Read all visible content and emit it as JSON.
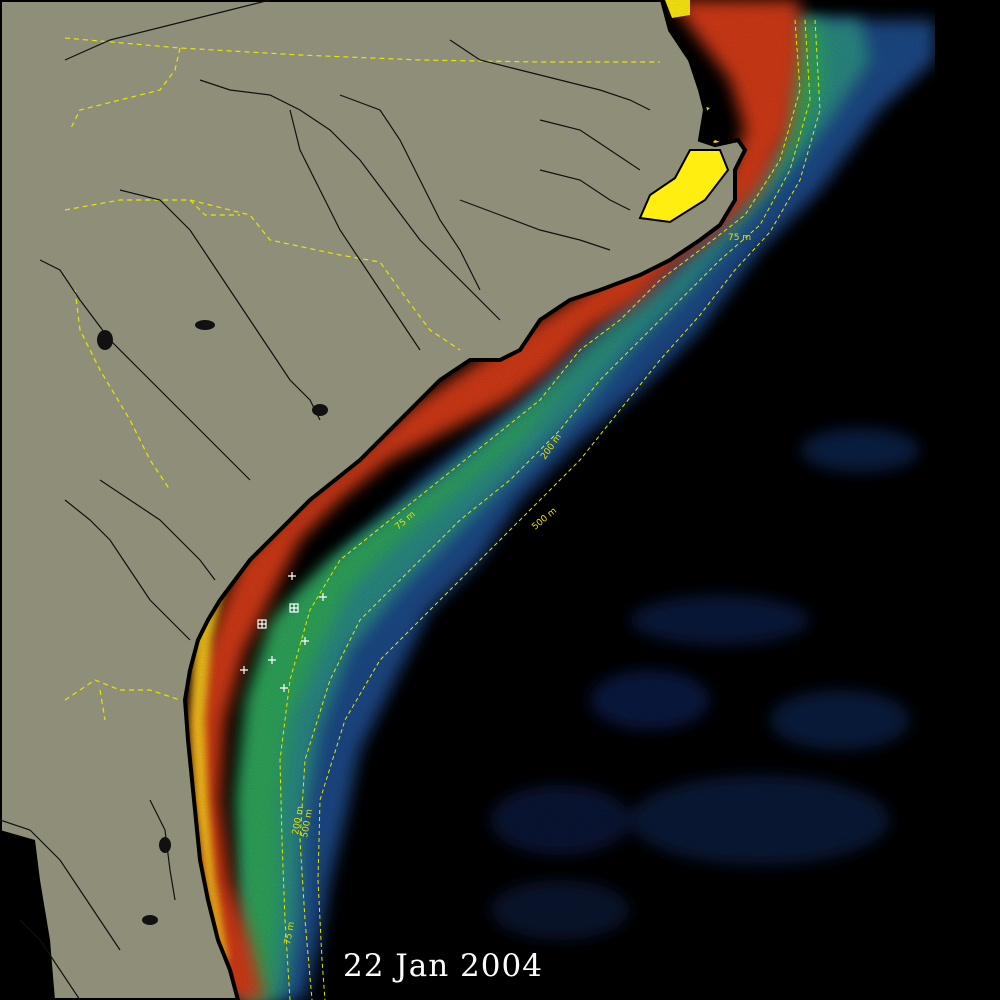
{
  "date_label": "22 Jan 2004",
  "contours": {
    "c75": "75 m",
    "c200": "200 m",
    "c500": "500 m"
  },
  "colors": {
    "land": "#8f8f79",
    "ocean": "#000000",
    "coastline": "#000000",
    "state_border": "#e6e600",
    "river": "#111111",
    "contour": "#e6e600",
    "nearshore_yellow": "#ffe81a",
    "nearshore_red": "#d83a10",
    "shelf_green": "#2fa55a",
    "shelf_teal": "#2d8f86",
    "offshore_blue": "#173f78",
    "deep_navy": "#0a1a3a",
    "station_marker": "#ffffff"
  }
}
